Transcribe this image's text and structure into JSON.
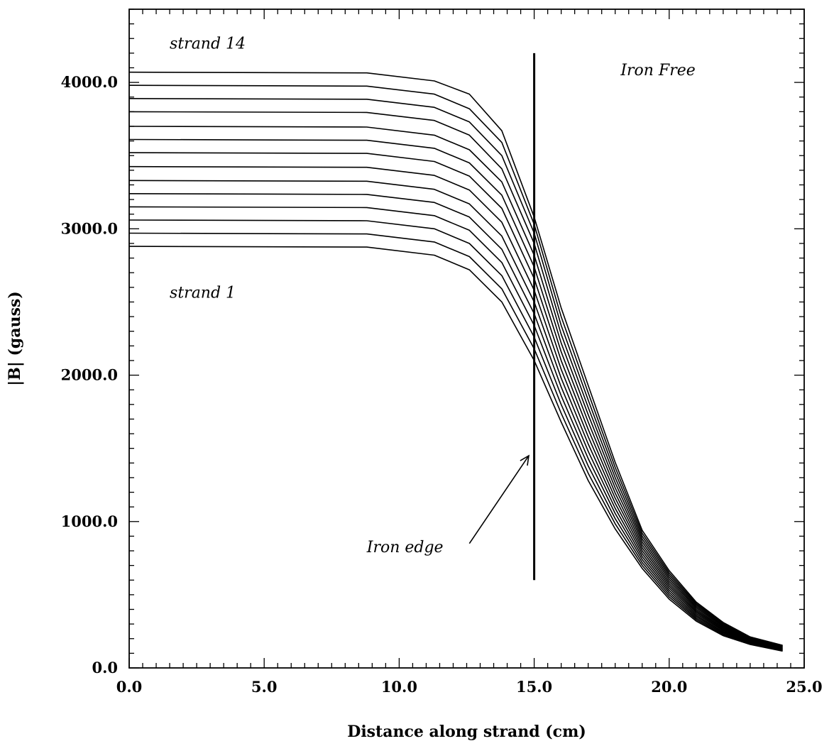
{
  "chart_data": {
    "type": "line",
    "title": "",
    "xlabel": "Distance along strand (cm)",
    "ylabel": "|B| (gauss)",
    "xlim": [
      0,
      25
    ],
    "ylim": [
      0,
      4500
    ],
    "x_ticks": [
      0,
      5,
      10,
      15,
      20,
      25
    ],
    "x_tick_labels": [
      "0.0",
      "5.0",
      "10.0",
      "15.0",
      "20.0",
      "25.0"
    ],
    "y_ticks": [
      0,
      1000,
      2000,
      3000,
      4000
    ],
    "y_tick_labels": [
      "0.0",
      "1000.0",
      "2000.0",
      "3000.0",
      "4000.0"
    ],
    "grid": false,
    "x": [
      0.0,
      8.8,
      11.3,
      12.6,
      13.8,
      15.0,
      16.0,
      17.0,
      18.0,
      19.0,
      20.0,
      21.0,
      22.0,
      23.0,
      24.2
    ],
    "series": [
      {
        "values": [
          2880,
          2875,
          2820,
          2720,
          2500,
          2100,
          1680,
          1280,
          950,
          680,
          470,
          320,
          220,
          160,
          115
        ]
      },
      {
        "values": [
          2970,
          2965,
          2910,
          2810,
          2590,
          2180,
          1740,
          1330,
          985,
          700,
          485,
          330,
          227,
          164,
          118
        ]
      },
      {
        "values": [
          3060,
          3055,
          3000,
          2900,
          2680,
          2260,
          1800,
          1380,
          1020,
          720,
          500,
          340,
          234,
          168,
          121
        ]
      },
      {
        "values": [
          3150,
          3145,
          3090,
          2990,
          2770,
          2340,
          1860,
          1430,
          1055,
          740,
          515,
          350,
          241,
          172,
          124
        ]
      },
      {
        "values": [
          3240,
          3235,
          3180,
          3080,
          2860,
          2420,
          1920,
          1480,
          1090,
          760,
          530,
          360,
          248,
          176,
          127
        ]
      },
      {
        "values": [
          3330,
          3325,
          3270,
          3170,
          2950,
          2500,
          1980,
          1530,
          1125,
          780,
          545,
          370,
          255,
          180,
          130
        ]
      },
      {
        "values": [
          3425,
          3420,
          3365,
          3265,
          3045,
          2580,
          2040,
          1580,
          1160,
          800,
          560,
          380,
          262,
          184,
          133
        ]
      },
      {
        "values": [
          3520,
          3515,
          3460,
          3360,
          3140,
          2660,
          2100,
          1630,
          1195,
          820,
          575,
          390,
          269,
          188,
          136
        ]
      },
      {
        "values": [
          3610,
          3605,
          3550,
          3450,
          3230,
          2740,
          2160,
          1680,
          1230,
          840,
          590,
          400,
          276,
          192,
          139
        ]
      },
      {
        "values": [
          3700,
          3695,
          3640,
          3540,
          3320,
          2820,
          2220,
          1730,
          1265,
          860,
          605,
          410,
          283,
          196,
          142
        ]
      },
      {
        "values": [
          3800,
          3795,
          3740,
          3640,
          3410,
          2900,
          2280,
          1780,
          1300,
          880,
          620,
          420,
          290,
          200,
          145
        ]
      },
      {
        "values": [
          3890,
          3885,
          3830,
          3730,
          3500,
          2970,
          2340,
          1830,
          1335,
          900,
          635,
          430,
          297,
          204,
          148
        ]
      },
      {
        "values": [
          3980,
          3975,
          3920,
          3820,
          3590,
          3030,
          2400,
          1880,
          1370,
          920,
          650,
          440,
          304,
          208,
          151
        ]
      },
      {
        "values": [
          4070,
          4065,
          4010,
          3920,
          3670,
          3080,
          2460,
          1930,
          1405,
          940,
          665,
          450,
          311,
          212,
          154
        ]
      }
    ],
    "iron_edge_line": {
      "x": 15.0,
      "y_from": 600,
      "y_to": 4200
    },
    "annotations": [
      {
        "text": "strand 14",
        "x": 1.5,
        "y": 4230
      },
      {
        "text": "strand 1",
        "x": 1.5,
        "y": 2530
      },
      {
        "text": "Iron Free",
        "x": 18.2,
        "y": 4050
      },
      {
        "text": "Iron edge",
        "x": 8.8,
        "y": 790
      }
    ],
    "arrow": {
      "from": [
        12.6,
        850
      ],
      "to": [
        14.8,
        1450
      ]
    }
  }
}
